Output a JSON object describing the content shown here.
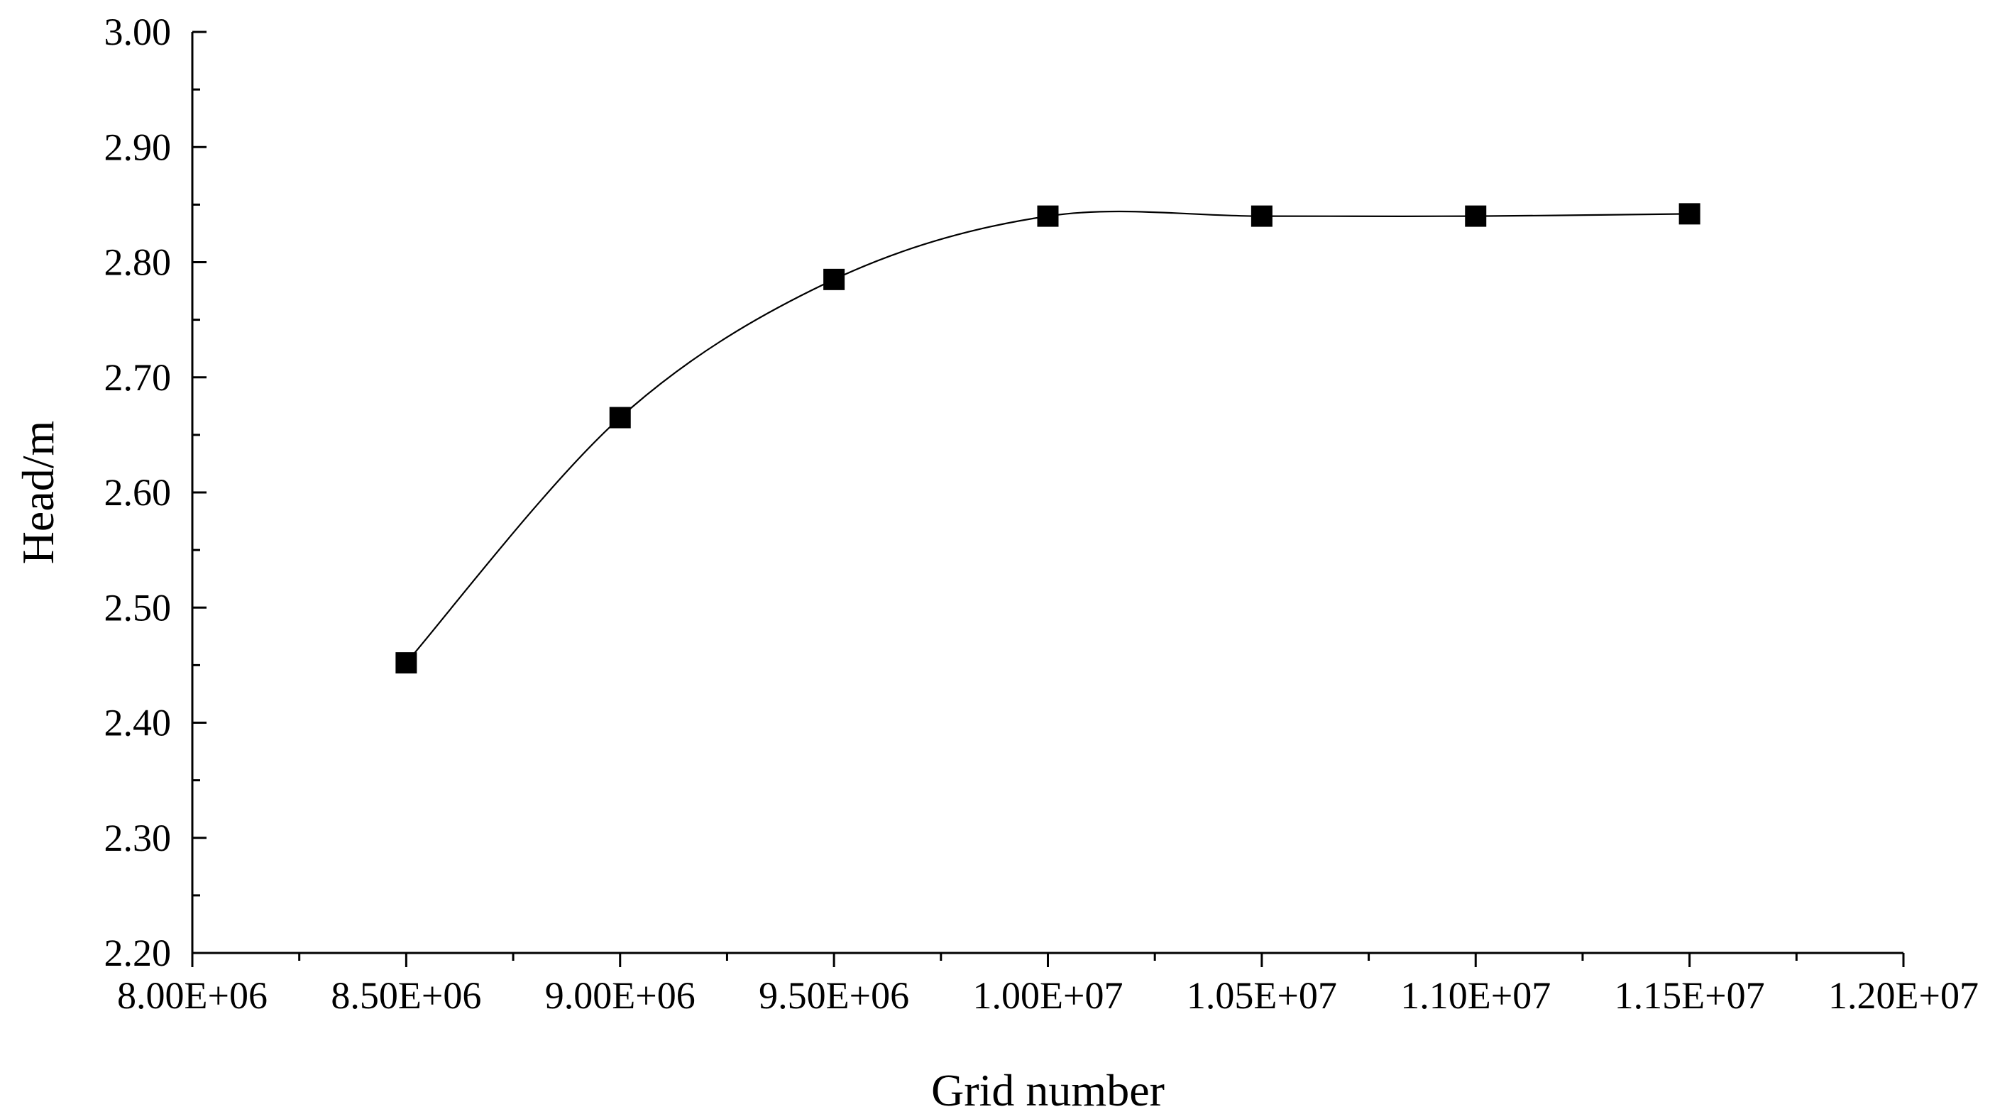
{
  "chart_data": {
    "type": "line",
    "xlabel": "Grid number",
    "ylabel": "Head/m",
    "xlim": [
      8000000,
      12000000
    ],
    "ylim": [
      2.2,
      3.0
    ],
    "x_ticks": [
      8000000,
      8500000,
      9000000,
      9500000,
      10000000,
      10500000,
      11000000,
      11500000,
      12000000
    ],
    "x_tick_labels": [
      "8.00E+06",
      "8.50E+06",
      "9.00E+06",
      "9.50E+06",
      "1.00E+07",
      "1.05E+07",
      "1.10E+07",
      "1.15E+07",
      "1.20E+07"
    ],
    "y_ticks": [
      2.2,
      2.3,
      2.4,
      2.5,
      2.6,
      2.7,
      2.8,
      2.9,
      3.0
    ],
    "y_tick_labels": [
      "2.20",
      "2.30",
      "2.40",
      "2.50",
      "2.60",
      "2.70",
      "2.80",
      "2.90",
      "3.00"
    ],
    "grid": false,
    "marker": "square",
    "line_style": "smooth",
    "color": "#000000",
    "series": [
      {
        "x": [
          8500000,
          9000000,
          9500000,
          10000000,
          10500000,
          11000000,
          11500000
        ],
        "values": [
          2.452,
          2.665,
          2.785,
          2.84,
          2.84,
          2.84,
          2.842
        ]
      }
    ]
  }
}
